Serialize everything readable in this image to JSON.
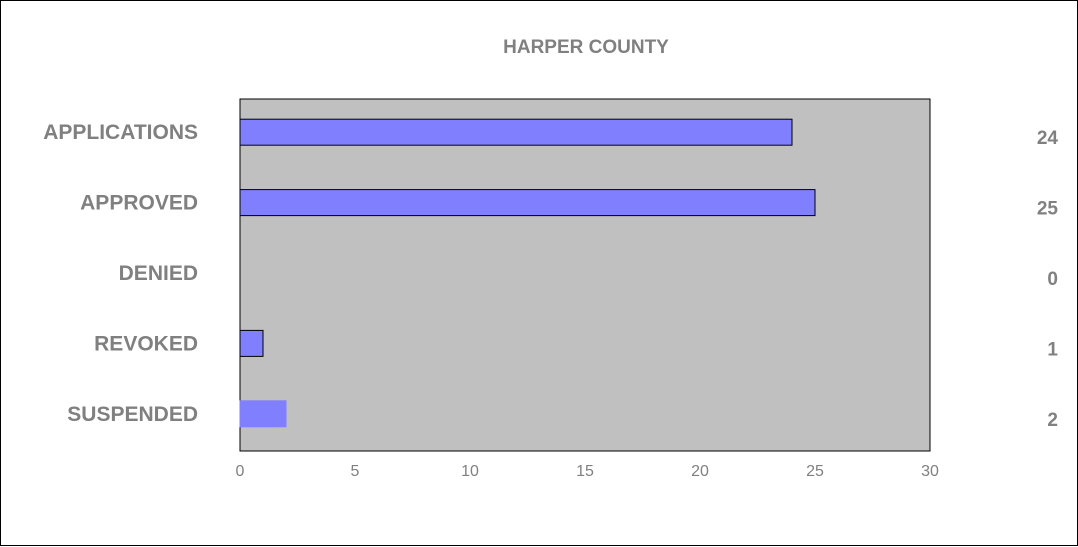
{
  "chart_data": {
    "type": "bar",
    "orientation": "horizontal",
    "title": "HARPER COUNTY",
    "categories": [
      "APPLICATIONS",
      "APPROVED",
      "DENIED",
      "REVOKED",
      "SUSPENDED"
    ],
    "values": [
      24,
      25,
      0,
      1,
      2
    ],
    "value_labels": [
      "24",
      "25",
      "0",
      "1",
      "2"
    ],
    "xlim": [
      0,
      30
    ],
    "xticks": [
      "0",
      "5",
      "10",
      "15",
      "20",
      "25",
      "30"
    ],
    "xlabel": "",
    "ylabel": "",
    "grid": false,
    "legend": "none",
    "colors": {
      "bar": "#8080ff",
      "plot_background": "#c0c0c0",
      "text": "#808080"
    }
  }
}
